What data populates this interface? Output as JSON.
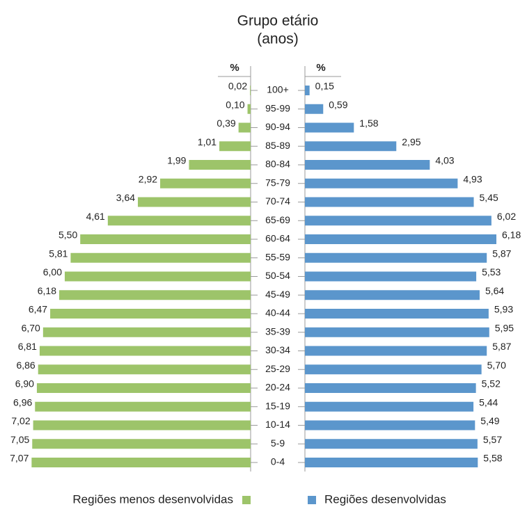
{
  "chart_data": {
    "type": "pyramid",
    "title": "Grupo etário",
    "subtitle": "(anos)",
    "left_axis_label": "%",
    "right_axis_label": "%",
    "categories": [
      "100+",
      "95-99",
      "90-94",
      "85-89",
      "80-84",
      "75-79",
      "70-74",
      "65-69",
      "60-64",
      "55-59",
      "50-54",
      "45-49",
      "40-44",
      "35-39",
      "30-34",
      "25-29",
      "20-24",
      "15-19",
      "10-14",
      "5-9",
      "0-4"
    ],
    "series": [
      {
        "name": "Regiões menos desenvolvidas",
        "color": "#9dc46a",
        "side": "left",
        "values": [
          0.02,
          0.1,
          0.39,
          1.01,
          1.99,
          2.92,
          3.64,
          4.61,
          5.5,
          5.81,
          6.0,
          6.18,
          6.47,
          6.7,
          6.81,
          6.86,
          6.9,
          6.96,
          7.02,
          7.05,
          7.07
        ],
        "value_labels": [
          "0,02",
          "0,10",
          "0,39",
          "1,01",
          "1,99",
          "2,92",
          "3,64",
          "4,61",
          "5,50",
          "5,81",
          "6,00",
          "6,18",
          "6,47",
          "6,70",
          "6,81",
          "6,86",
          "6,90",
          "6,96",
          "7,02",
          "7,05",
          "7,07"
        ]
      },
      {
        "name": "Regiões desenvolvidas",
        "color": "#5b96cc",
        "side": "right",
        "values": [
          0.15,
          0.59,
          1.58,
          2.95,
          4.03,
          4.93,
          5.45,
          6.02,
          6.18,
          5.87,
          5.53,
          5.64,
          5.93,
          5.95,
          5.87,
          5.7,
          5.52,
          5.44,
          5.49,
          5.57,
          5.58
        ],
        "value_labels": [
          "0,15",
          "0,59",
          "1,58",
          "2,95",
          "4,03",
          "4,93",
          "5,45",
          "6,02",
          "6,18",
          "5,87",
          "5,53",
          "5,64",
          "5,93",
          "5,95",
          "5,87",
          "5,70",
          "5,52",
          "5,44",
          "5,49",
          "5,57",
          "5,58"
        ]
      }
    ]
  }
}
